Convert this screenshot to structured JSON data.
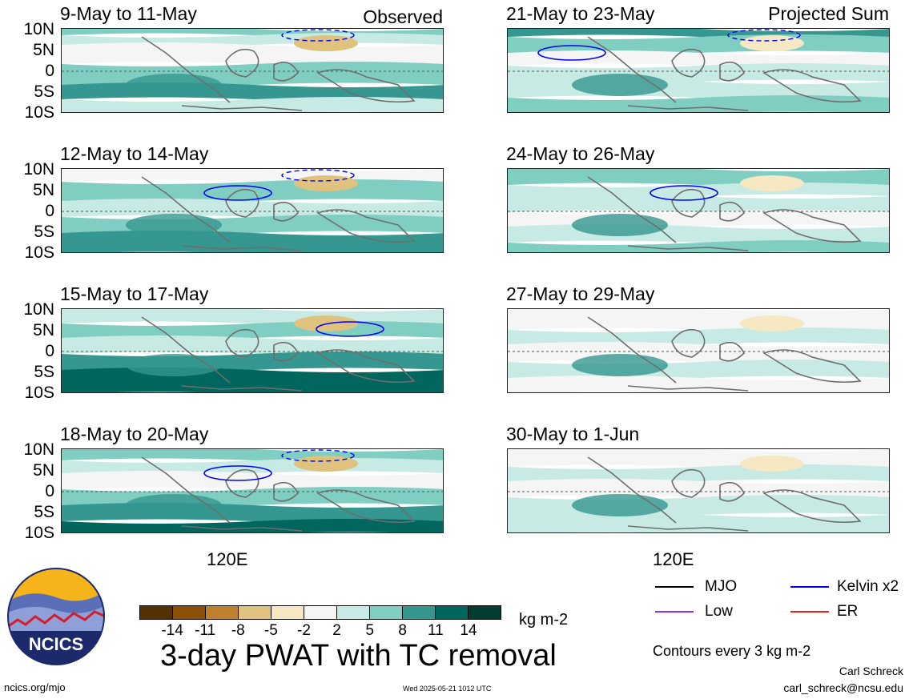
{
  "panels_left": [
    {
      "title": "9-May to 11-May",
      "corner": "Observed"
    },
    {
      "title": "12-May to 14-May",
      "corner": ""
    },
    {
      "title": "15-May to 17-May",
      "corner": ""
    },
    {
      "title": "18-May to 20-May",
      "corner": ""
    }
  ],
  "panels_right": [
    {
      "title": "21-May to 23-May",
      "corner": "Projected Sum"
    },
    {
      "title": "24-May to 26-May",
      "corner": ""
    },
    {
      "title": "27-May to 29-May",
      "corner": ""
    },
    {
      "title": "30-May to 1-Jun",
      "corner": ""
    }
  ],
  "lat_labels": [
    "10N",
    "5N",
    "0",
    "5S",
    "10S"
  ],
  "x_tick_label": "120E",
  "colorbar": {
    "ticks": [
      "-14",
      "-11",
      "-8",
      "-5",
      "-2",
      "2",
      "5",
      "8",
      "11",
      "14"
    ],
    "colors": [
      "#543005",
      "#8c5109",
      "#bf812d",
      "#dfc27d",
      "#f6e8c3",
      "#f5f5f5",
      "#c7eae5",
      "#80cdc1",
      "#35978f",
      "#01665e",
      "#003c30"
    ],
    "units": "kg m-2"
  },
  "main_title": "3-day PWAT with TC removal",
  "legend": {
    "items": [
      {
        "label": "MJO",
        "color": "#000000"
      },
      {
        "label": "Kelvin x2",
        "color": "#0000ff"
      },
      {
        "label": "Low",
        "color": "#9b30d9"
      },
      {
        "label": "ER",
        "color": "#e0201b"
      }
    ],
    "contour_note": "Contours every 3 kg m-2"
  },
  "footer": {
    "logo_text": "NCICS",
    "site": "ncics.org/mjo",
    "timestamp": "Wed 2025-05-21 1012 UTC",
    "author": "Carl Schreck",
    "email": "carl_schreck@ncsu.edu"
  },
  "chart_data": {
    "type": "heatmap",
    "title": "3-day PWAT with TC removal",
    "units": "kg m-2",
    "ylim": [
      "10S",
      "10N"
    ],
    "y_ticks": [
      "10N",
      "5N",
      "0",
      "5S",
      "10S"
    ],
    "x_ticks": [
      "120E"
    ],
    "color_levels": [
      -14,
      -11,
      -8,
      -5,
      -2,
      2,
      5,
      8,
      11,
      14
    ],
    "panels": [
      "9-May to 11-May",
      "12-May to 14-May",
      "15-May to 17-May",
      "18-May to 20-May",
      "21-May to 23-May",
      "24-May to 26-May",
      "27-May to 29-May",
      "30-May to 1-Jun"
    ],
    "legend": [
      "MJO",
      "Kelvin x2",
      "Low",
      "ER"
    ]
  }
}
